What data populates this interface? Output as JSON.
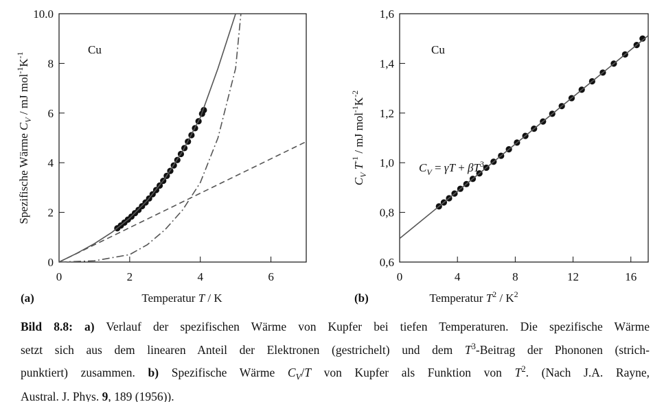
{
  "chart_data": [
    {
      "type": "line",
      "panel_label": "(a)",
      "annotation": "Cu",
      "xlabel": [
        {
          "text": "Temperatur  "
        },
        {
          "text": "T",
          "style": "italic"
        },
        {
          "text": " / K"
        }
      ],
      "ylabel": [
        {
          "text": "Spezifische Wärme "
        },
        {
          "text": "C",
          "style": "italic"
        },
        {
          "text": "V",
          "style": "italic-sub"
        },
        {
          "text": " / mJ mol"
        },
        {
          "text": "-1",
          "style": "sup"
        },
        {
          "text": "K"
        },
        {
          "text": "-1",
          "style": "sup"
        }
      ],
      "xlim": [
        0,
        7
      ],
      "ylim": [
        0,
        10
      ],
      "xticks": [
        0,
        2,
        4,
        6
      ],
      "yticks": [
        0,
        2,
        4,
        6,
        8,
        {
          "value": 10,
          "label": "10.0"
        }
      ],
      "series": [
        {
          "style": "points",
          "color": "#111111",
          "x": [
            1.65,
            1.75,
            1.85,
            1.95,
            2.05,
            2.15,
            2.25,
            2.35,
            2.45,
            2.55,
            2.65,
            2.75,
            2.85,
            2.95,
            3.05,
            3.15,
            3.25,
            3.35,
            3.45,
            3.55,
            3.65,
            3.75,
            3.85,
            3.95,
            4.05,
            4.1
          ],
          "values": [
            1.36,
            1.47,
            1.59,
            1.71,
            1.83,
            1.97,
            2.1,
            2.25,
            2.4,
            2.56,
            2.73,
            2.9,
            3.08,
            3.27,
            3.47,
            3.67,
            3.89,
            4.11,
            4.35,
            4.59,
            4.85,
            5.11,
            5.39,
            5.67,
            5.97,
            6.12
          ]
        },
        {
          "style": "solid",
          "color": "#555555",
          "x": [
            0,
            0.5,
            1,
            1.5,
            2,
            2.5,
            3,
            3.5,
            4,
            4.5,
            5.0
          ],
          "values": [
            0,
            0.35,
            0.74,
            1.2,
            1.77,
            2.48,
            3.37,
            4.47,
            5.82,
            7.8,
            10
          ]
        },
        {
          "style": "dashed",
          "color": "#555555",
          "x": [
            0,
            7
          ],
          "values": [
            0,
            4.85
          ]
        },
        {
          "style": "dashdot",
          "color": "#555555",
          "x": [
            0,
            1,
            2,
            2.5,
            3,
            3.5,
            4,
            4.5,
            5,
            5.15
          ],
          "values": [
            0,
            0.05,
            0.3,
            0.7,
            1.3,
            2.1,
            3.2,
            5.0,
            7.8,
            10
          ]
        }
      ]
    },
    {
      "type": "line",
      "panel_label": "(b)",
      "annotation": "Cu",
      "formula": [
        {
          "text": "C",
          "style": "italic"
        },
        {
          "text": "V",
          "style": "italic-sub"
        },
        {
          "text": " = "
        },
        {
          "text": "γT",
          "style": "italic"
        },
        {
          "text": " + "
        },
        {
          "text": "βT",
          "style": "italic"
        },
        {
          "text": "3",
          "style": "sup"
        }
      ],
      "xlabel": [
        {
          "text": "Temperatur  "
        },
        {
          "text": "T",
          "style": "italic"
        },
        {
          "text": "2",
          "style": "sup"
        },
        {
          "text": " / K"
        },
        {
          "text": "2",
          "style": "sup"
        }
      ],
      "ylabel": [
        {
          "text": "C",
          "style": "italic"
        },
        {
          "text": "V",
          "style": "italic-sub"
        },
        {
          "text": " "
        },
        {
          "text": "T",
          "style": "italic"
        },
        {
          "text": "-1",
          "style": "sup"
        },
        {
          "text": " / mJ mol"
        },
        {
          "text": "-1",
          "style": "sup"
        },
        {
          "text": "K"
        },
        {
          "text": "-2",
          "style": "sup"
        }
      ],
      "xlim": [
        0,
        17.2
      ],
      "ylim": [
        0.6,
        1.6
      ],
      "xticks": [
        0,
        4,
        8,
        12,
        16
      ],
      "yticks": [
        {
          "value": 0.6,
          "label": "0,6"
        },
        {
          "value": 0.8,
          "label": "0,8"
        },
        {
          "value": 1.0,
          "label": "1,0"
        },
        {
          "value": 1.2,
          "label": "1,2"
        },
        {
          "value": 1.4,
          "label": "1,4"
        },
        {
          "value": 1.6,
          "label": "1,6"
        }
      ],
      "series": [
        {
          "style": "points",
          "color": "#111111",
          "x": [
            2.72,
            3.06,
            3.42,
            3.8,
            4.2,
            4.62,
            5.06,
            5.52,
            6.0,
            6.5,
            7.02,
            7.56,
            8.12,
            8.7,
            9.3,
            9.92,
            10.56,
            11.22,
            11.9,
            12.6,
            13.32,
            14.06,
            14.82,
            15.6,
            16.4,
            16.81
          ],
          "values": [
            0.824,
            0.84,
            0.857,
            0.876,
            0.895,
            0.914,
            0.935,
            0.957,
            0.98,
            1.004,
            1.028,
            1.054,
            1.081,
            1.108,
            1.137,
            1.166,
            1.197,
            1.228,
            1.26,
            1.294,
            1.328,
            1.363,
            1.399,
            1.436,
            1.474,
            1.5
          ]
        },
        {
          "style": "solid",
          "color": "#555555",
          "x": [
            0,
            17.2
          ],
          "values": [
            0.695,
            1.512
          ]
        }
      ]
    }
  ],
  "caption": [
    [
      {
        "text": "Bild 8.8: a)",
        "style": "bold"
      },
      {
        "text": " Verlauf der spezifischen Wärme von Kupfer bei tiefen Temperaturen. Die spezifische Wärme"
      }
    ],
    [
      {
        "text": "setzt sich aus dem linearen Anteil der Elektronen (gestrichelt) und dem "
      },
      {
        "text": "T",
        "style": "italic"
      },
      {
        "text": "3",
        "style": "sup"
      },
      {
        "text": "-Beitrag der Phononen (strich-"
      }
    ],
    [
      {
        "text": "punktiert) zusammen. "
      },
      {
        "text": "b)",
        "style": "bold"
      },
      {
        "text": " Spezifische Wärme "
      },
      {
        "text": "C",
        "style": "italic"
      },
      {
        "text": "V",
        "style": "italic-sub"
      },
      {
        "text": "/"
      },
      {
        "text": "T",
        "style": "italic"
      },
      {
        "text": " von Kupfer als Funktion von "
      },
      {
        "text": "T",
        "style": "italic"
      },
      {
        "text": "2",
        "style": "sup"
      },
      {
        "text": ". (Nach J.A. Rayne,"
      }
    ],
    [
      {
        "text": "Austral. J. Phys. "
      },
      {
        "text": "9",
        "style": "bold"
      },
      {
        "text": ", 189 (1956))."
      }
    ]
  ]
}
